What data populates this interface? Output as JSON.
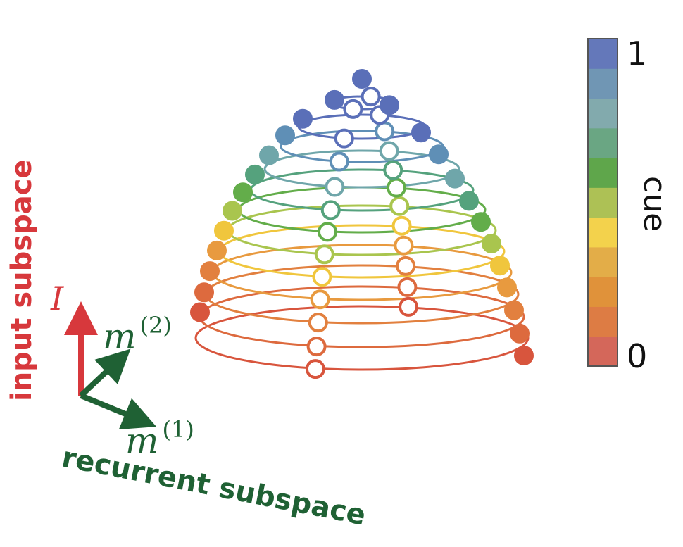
{
  "labels": {
    "input_subspace": "input subspace",
    "recurrent_subspace": "recurrent subspace",
    "I_symbol": "I",
    "m_symbol": "m",
    "m2_superscript": "(2)",
    "m1_superscript": "(1)"
  },
  "colorbar": {
    "title": "cue",
    "tick_max": "1",
    "tick_min": "0",
    "colors": [
      "#d4675a",
      "#dd7c44",
      "#e0923a",
      "#e3ad48",
      "#f3d24c",
      "#adc155",
      "#5fa64b",
      "#6aa683",
      "#82aaad",
      "#7096b4",
      "#6478ba"
    ]
  },
  "colors": {
    "input": "#d7383c",
    "recurrent": "#1f6134"
  },
  "rings": {
    "count": 11,
    "colors": [
      "#d8553d",
      "#dd6a3e",
      "#e2803f",
      "#e89a3f",
      "#f0c63d",
      "#a9c54e",
      "#63ad4a",
      "#55a27d",
      "#6fa6aa",
      "#5f8fb6",
      "#5a6fb8"
    ]
  }
}
